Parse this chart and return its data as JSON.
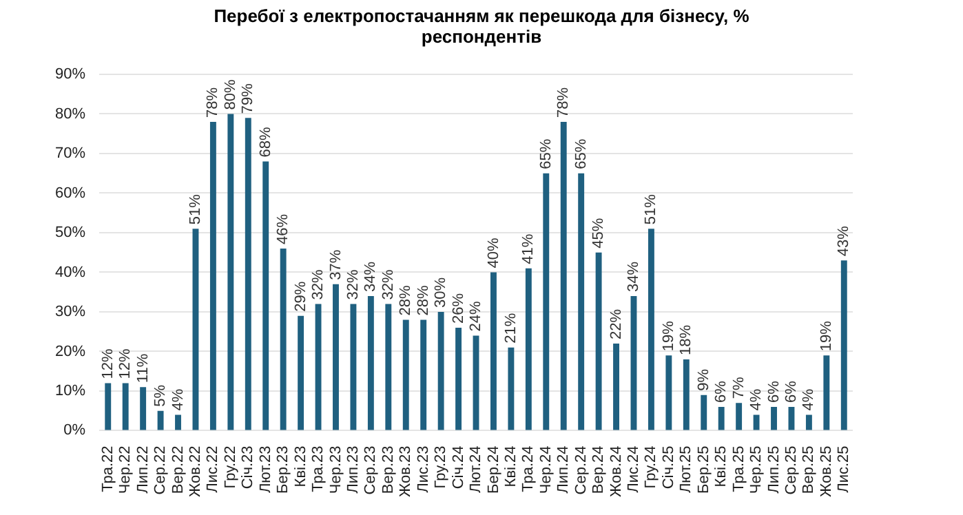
{
  "chart_data": {
    "type": "bar",
    "title": "Перебої з електропостачанням як перешкода для бізнесу, % респондентів",
    "categories": [
      "Тра.22",
      "Чер.22",
      "Лип.22",
      "Сер.22",
      "Вер.22",
      "Жов.22",
      "Лис.22",
      "Гру.22",
      "Січ.23",
      "Лют.23",
      "Бер.23",
      "Кві.23",
      "Тра.23",
      "Чер.23",
      "Лип.23",
      "Сер.23",
      "Вер.23",
      "Жов.23",
      "Лис.23",
      "Гру.23",
      "Січ.24",
      "Лют.24",
      "Бер.24",
      "Кві.24",
      "Тра.24",
      "Чер.24",
      "Лип.24",
      "Сер.24",
      "Вер.24",
      "Жов.24",
      "Лис.24",
      "Гру.24",
      "Січ.25",
      "Лют.25",
      "Бер.25",
      "Кві.25",
      "Тра.25",
      "Чер.25",
      "Лип.25",
      "Сер.25",
      "Вер.25",
      "Жов.25",
      "Лис.25"
    ],
    "values": [
      12,
      12,
      11,
      5,
      4,
      51,
      78,
      80,
      79,
      68,
      46,
      29,
      32,
      37,
      32,
      34,
      32,
      28,
      28,
      30,
      26,
      24,
      40,
      21,
      41,
      65,
      78,
      65,
      45,
      22,
      34,
      51,
      19,
      18,
      9,
      6,
      7,
      4,
      6,
      6,
      4,
      19,
      43
    ],
    "value_labels": [
      "12%",
      "12%",
      "11%",
      "5%",
      "4%",
      "51%",
      "78%",
      "80%",
      "79%",
      "68%",
      "46%",
      "29%",
      "32%",
      "37%",
      "32%",
      "34%",
      "32%",
      "28%",
      "28%",
      "30%",
      "26%",
      "24%",
      "40%",
      "21%",
      "41%",
      "65%",
      "78%",
      "65%",
      "45%",
      "22%",
      "34%",
      "51%",
      "19%",
      "18%",
      "9%",
      "6%",
      "7%",
      "4%",
      "6%",
      "6%",
      "4%",
      "19%",
      "43%"
    ],
    "color": "#1f6080",
    "ylim": [
      0,
      90
    ],
    "yticks": [
      {
        "value": 0,
        "label": "0%"
      },
      {
        "value": 10,
        "label": "10%"
      },
      {
        "value": 20,
        "label": "20%"
      },
      {
        "value": 30,
        "label": "30%"
      },
      {
        "value": 40,
        "label": "40%"
      },
      {
        "value": 50,
        "label": "50%"
      },
      {
        "value": 60,
        "label": "60%"
      },
      {
        "value": 70,
        "label": "70%"
      },
      {
        "value": 80,
        "label": "80%"
      },
      {
        "value": 90,
        "label": "90%"
      }
    ],
    "grid": "y",
    "legend": false
  }
}
